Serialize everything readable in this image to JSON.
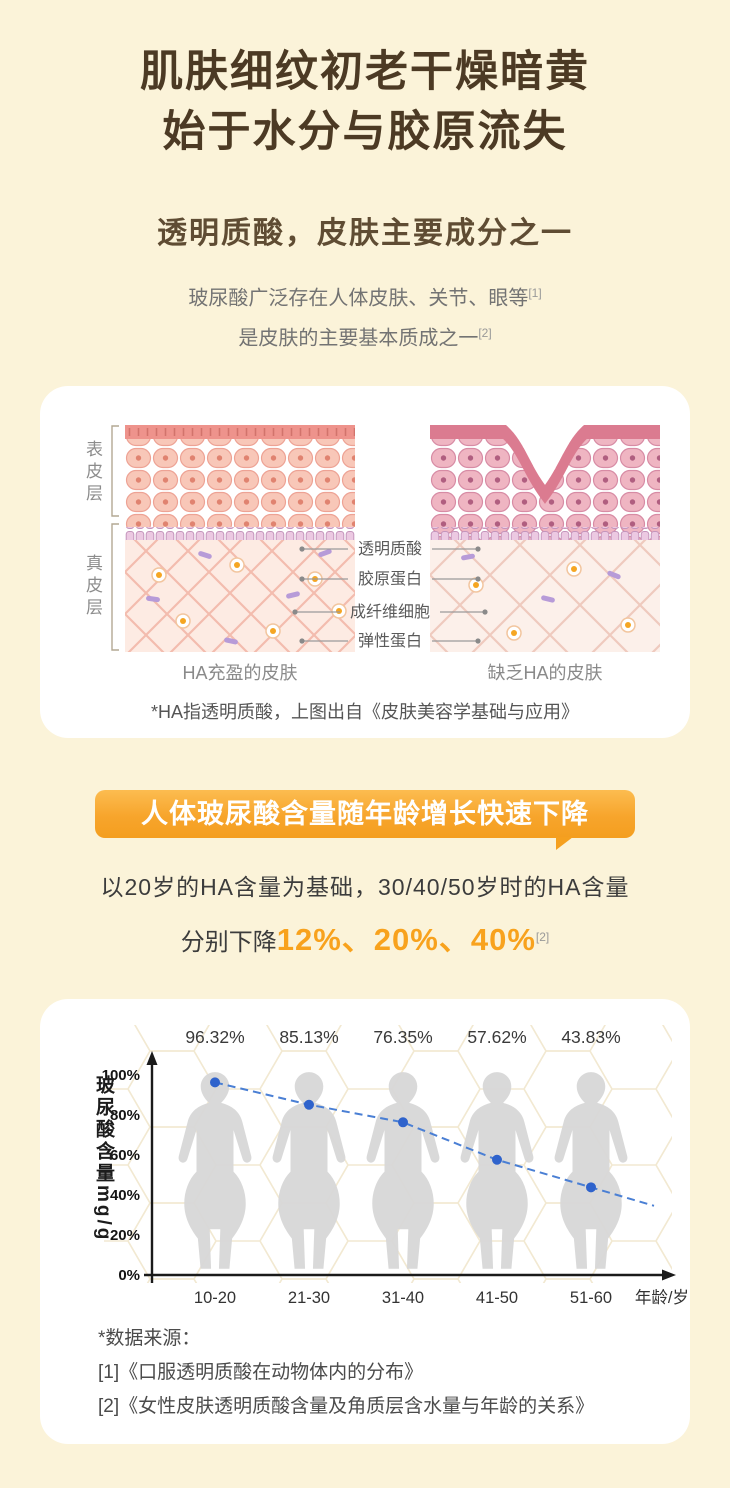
{
  "page": {
    "bg_color": "#fbf3d9",
    "accent_orange": "#f8a21d",
    "title_color": "#4c3a24"
  },
  "hero": {
    "title_line1": "肌肤细纹初老干燥暗黄",
    "title_line2": "始于水分与胶原流失",
    "subtitle": "透明质酸，皮肤主要成分之一",
    "desc_line1": "玻尿酸广泛存在人体皮肤、关节、眼等",
    "desc_line1_sup": "[1]",
    "desc_line2": "是皮肤的主要基本质成之一",
    "desc_line2_sup": "[2]"
  },
  "skin_card": {
    "left_axis_labels": [
      "表皮层",
      "真皮层"
    ],
    "middle_labels": [
      "透明质酸",
      "胶原蛋白",
      "成纤维细胞",
      "弹性蛋白"
    ],
    "left_caption": "HA充盈的皮肤",
    "right_caption": "缺乏HA的皮肤",
    "note": "*HA指透明质酸，上图出自《皮肤美容学基础与应用》"
  },
  "banner": {
    "text": "人体玻尿酸含量随年龄增长快速下降"
  },
  "decline": {
    "line1": "以20岁的HA含量为基础，30/40/50岁时的HA含量",
    "line2_prefix": "分别下降",
    "line2_values": "12%、20%、40%",
    "line2_sup": "[2]"
  },
  "chart_data": {
    "type": "line",
    "categories": [
      "10-20",
      "21-30",
      "31-40",
      "41-50",
      "51-60"
    ],
    "values": [
      96.32,
      85.13,
      76.35,
      57.62,
      43.83
    ],
    "point_labels": [
      "96.32%",
      "85.13%",
      "76.35%",
      "57.62%",
      "43.83%"
    ],
    "ylabel": "玻尿酸含量mg/g",
    "xlabel": "年龄/岁",
    "yticks": [
      "0%",
      "20%",
      "40%",
      "60%",
      "80%",
      "100%"
    ],
    "ylim": [
      0,
      100
    ],
    "line_color": "#4a7fd4",
    "point_color": "#2f63cc",
    "line_style": "dashed",
    "legend": "none",
    "grid": false
  },
  "sources": {
    "heading": "*数据来源：",
    "items": [
      "[1]《口服透明质酸在动物体内的分布》",
      "[2]《女性皮肤透明质酸含量及角质层含水量与年龄的关系》"
    ]
  }
}
